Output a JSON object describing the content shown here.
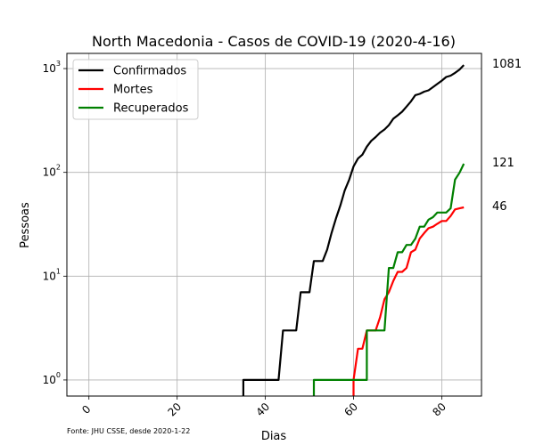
{
  "chart_data": {
    "type": "line",
    "title": "North Macedonia - Casos de COVID-19 (2020-4-16)",
    "xlabel": "Dias",
    "ylabel": "Pessoas",
    "yscale": "log",
    "xlim": [
      -5,
      89
    ],
    "ylim": [
      0.7,
      1400
    ],
    "grid": true,
    "legend_position": "top-left",
    "footnote": "Fonte: JHU CSSE, desde 2020-1-22",
    "x_ticks": [
      0,
      20,
      40,
      60,
      80
    ],
    "y_ticks": [
      {
        "value": 1,
        "base": "10",
        "exp": "0"
      },
      {
        "value": 10,
        "base": "10",
        "exp": "1"
      },
      {
        "value": 100,
        "base": "10",
        "exp": "2"
      },
      {
        "value": 1000,
        "base": "10",
        "exp": "3"
      }
    ],
    "series": [
      {
        "name": "Confirmados",
        "color": "#000000",
        "end_label": "1081",
        "points": [
          [
            35,
            0.7
          ],
          [
            35,
            1
          ],
          [
            36,
            1
          ],
          [
            37,
            1
          ],
          [
            38,
            1
          ],
          [
            39,
            1
          ],
          [
            40,
            1
          ],
          [
            41,
            1
          ],
          [
            42,
            1
          ],
          [
            43,
            1
          ],
          [
            44,
            3
          ],
          [
            45,
            3
          ],
          [
            46,
            3
          ],
          [
            47,
            3
          ],
          [
            48,
            7
          ],
          [
            49,
            7
          ],
          [
            50,
            7
          ],
          [
            51,
            14
          ],
          [
            52,
            14
          ],
          [
            53,
            14
          ],
          [
            54,
            18
          ],
          [
            55,
            26
          ],
          [
            56,
            36
          ],
          [
            57,
            48
          ],
          [
            58,
            67
          ],
          [
            59,
            85
          ],
          [
            60,
            114
          ],
          [
            61,
            136
          ],
          [
            62,
            148
          ],
          [
            63,
            177
          ],
          [
            64,
            201
          ],
          [
            65,
            219
          ],
          [
            66,
            241
          ],
          [
            67,
            259
          ],
          [
            68,
            285
          ],
          [
            69,
            329
          ],
          [
            70,
            354
          ],
          [
            71,
            384
          ],
          [
            72,
            430
          ],
          [
            73,
            483
          ],
          [
            74,
            555
          ],
          [
            75,
            570
          ],
          [
            76,
            599
          ],
          [
            77,
            617
          ],
          [
            78,
            663
          ],
          [
            79,
            711
          ],
          [
            80,
            765
          ],
          [
            81,
            829
          ],
          [
            82,
            854
          ],
          [
            83,
            908
          ],
          [
            84,
            977
          ],
          [
            85,
            1081
          ]
        ]
      },
      {
        "name": "Mortes",
        "color": "#ff0000",
        "end_label": "46",
        "points": [
          [
            60,
            0.7
          ],
          [
            60,
            1
          ],
          [
            61,
            2
          ],
          [
            62,
            2
          ],
          [
            63,
            3
          ],
          [
            64,
            3
          ],
          [
            65,
            3
          ],
          [
            66,
            4
          ],
          [
            67,
            6
          ],
          [
            68,
            7
          ],
          [
            69,
            9
          ],
          [
            70,
            11
          ],
          [
            71,
            11
          ],
          [
            72,
            12
          ],
          [
            73,
            17
          ],
          [
            74,
            18
          ],
          [
            75,
            23
          ],
          [
            76,
            26
          ],
          [
            77,
            29
          ],
          [
            78,
            30
          ],
          [
            79,
            32
          ],
          [
            80,
            34
          ],
          [
            81,
            34
          ],
          [
            82,
            38
          ],
          [
            83,
            44
          ],
          [
            84,
            45
          ],
          [
            85,
            46
          ]
        ]
      },
      {
        "name": "Recuperados",
        "color": "#008000",
        "end_label": "121",
        "points": [
          [
            51,
            0.7
          ],
          [
            51,
            1
          ],
          [
            52,
            1
          ],
          [
            53,
            1
          ],
          [
            54,
            1
          ],
          [
            55,
            1
          ],
          [
            56,
            1
          ],
          [
            57,
            1
          ],
          [
            58,
            1
          ],
          [
            59,
            1
          ],
          [
            60,
            1
          ],
          [
            61,
            1
          ],
          [
            62,
            1
          ],
          [
            63,
            1
          ],
          [
            63,
            3
          ],
          [
            64,
            3
          ],
          [
            65,
            3
          ],
          [
            66,
            3
          ],
          [
            67,
            3
          ],
          [
            68,
            12
          ],
          [
            69,
            12
          ],
          [
            70,
            17
          ],
          [
            71,
            17
          ],
          [
            72,
            20
          ],
          [
            73,
            20
          ],
          [
            74,
            23
          ],
          [
            75,
            30
          ],
          [
            76,
            30
          ],
          [
            77,
            35
          ],
          [
            78,
            37
          ],
          [
            79,
            41
          ],
          [
            80,
            41
          ],
          [
            81,
            41
          ],
          [
            82,
            45
          ],
          [
            83,
            85
          ],
          [
            84,
            99
          ],
          [
            85,
            121
          ]
        ]
      }
    ]
  }
}
